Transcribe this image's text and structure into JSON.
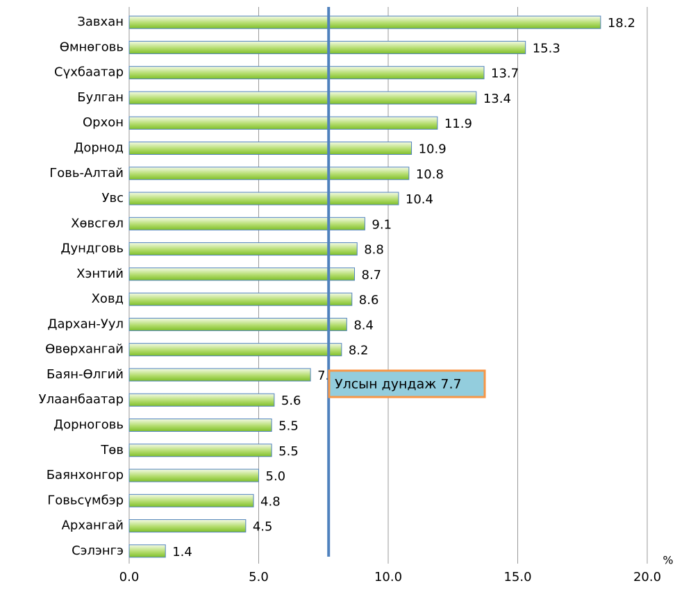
{
  "chart_data": {
    "type": "bar",
    "orientation": "horizontal",
    "categories": [
      "Завхан",
      "Өмнөговь",
      "Сүхбаатар",
      "Булган",
      "Орхон",
      "Дорнод",
      "Говь-Алтай",
      "Увс",
      "Хөвсгөл",
      "Дундговь",
      "Хэнтий",
      "Ховд",
      "Дархан-Уул",
      "Өвөрхангай",
      "Баян-Өлгий",
      "Улаанбаатар",
      "Дорноговь",
      "Төв",
      "Баянхонгор",
      "Говьсүмбэр",
      "Архангай",
      "Сэлэнгэ"
    ],
    "values": [
      18.2,
      15.3,
      13.7,
      13.4,
      11.9,
      10.9,
      10.8,
      10.4,
      9.1,
      8.8,
      8.7,
      8.6,
      8.4,
      8.2,
      7.0,
      5.6,
      5.5,
      5.5,
      5.0,
      4.8,
      4.5,
      1.4
    ],
    "value_labels": [
      "18.2",
      "15.3",
      "13.7",
      "13.4",
      "11.9",
      "10.9",
      "10.8",
      "10.4",
      "9.1",
      "8.8",
      "8.7",
      "8.6",
      "8.4",
      "8.2",
      "7.0",
      "5.6",
      "5.5",
      "5.5",
      "5.0",
      "4.8",
      "4.5",
      "1.4"
    ],
    "color": "#92d050",
    "xlim": [
      0,
      20
    ],
    "xticks": [
      {
        "value": 0,
        "label": "0.0"
      },
      {
        "value": 5,
        "label": "5.0"
      },
      {
        "value": 10,
        "label": "10.0"
      },
      {
        "value": 15,
        "label": "15.0"
      },
      {
        "value": 20,
        "label": "20.0"
      }
    ],
    "x_label": "%",
    "grid": true,
    "reference_line": {
      "value": 7.7,
      "color": "#4f81bd",
      "label": "Улсын дундаж 7.7"
    }
  }
}
